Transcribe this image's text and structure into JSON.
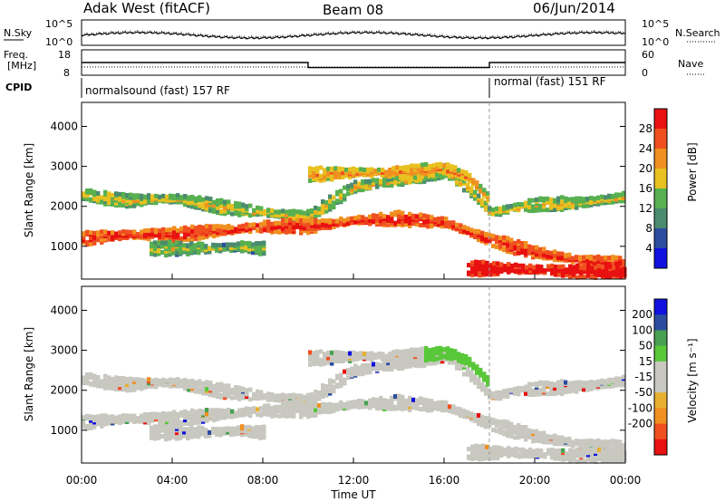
{
  "header": {
    "station": "Adak West (fitACF)",
    "beam": "Beam 08",
    "date": "06/Jun/2014"
  },
  "noise_panel": {
    "left_label": "N.Sky",
    "right_label": "N.Search",
    "left_ticks": [
      "10^5",
      "10^0"
    ],
    "right_ticks": [
      "10^5",
      "10^0"
    ]
  },
  "freq_panel": {
    "left_label_1": "Freq.",
    "left_label_2": "[MHz]",
    "right_label": "Nave",
    "left_ticks": [
      "18",
      "8"
    ],
    "right_ticks": [
      "60",
      "0"
    ],
    "freq_steps": [
      {
        "from": 0,
        "to": 10,
        "value": 13
      },
      {
        "from": 10,
        "to": 18,
        "value": 11
      },
      {
        "from": 18,
        "to": 24,
        "value": 13
      }
    ]
  },
  "cpid_panel": {
    "label": "CPID",
    "modes": [
      {
        "start": 0,
        "text": "normalsound (fast) 157 RF"
      },
      {
        "start": 18,
        "text": "normal (fast) 151 RF"
      }
    ]
  },
  "axes": {
    "ylabel": "Slant Range [km]",
    "yticks": [
      "1000",
      "2000",
      "3000",
      "4000"
    ],
    "xticks": [
      "00:00",
      "04:00",
      "08:00",
      "12:00",
      "16:00",
      "20:00",
      "00:00"
    ],
    "xlabel": "Time UT"
  },
  "colors": {
    "power": [
      "#1010e0",
      "#2c4ca0",
      "#4b8c6e",
      "#58b050",
      "#e8c020",
      "#f09020",
      "#f05020",
      "#e81010"
    ],
    "velocity": [
      "#e81010",
      "#f05020",
      "#f09020",
      "#e8b030",
      "#c8c8c0",
      "#c8c8c0",
      "#58c838",
      "#48a050",
      "#2c4ca0",
      "#1010e0"
    ],
    "ground_scatter": "#c8c8c0"
  },
  "power_colorbar": {
    "label": "Power [dB]",
    "ticks": [
      "4",
      "8",
      "12",
      "16",
      "20",
      "24",
      "28"
    ]
  },
  "velocity_colorbar": {
    "label": "Velocity [m s⁻¹]",
    "ticks": [
      "200",
      "100",
      "50",
      "15",
      "-15",
      "-50",
      "-100",
      "-200"
    ]
  },
  "chart_data": {
    "type": "heatmap",
    "x_range_hours": [
      0,
      24
    ],
    "y_range_km": [
      180,
      4600
    ],
    "power_range_db": [
      0,
      30
    ],
    "velocity_range": [
      -250,
      250
    ],
    "scatter_bands": [
      {
        "name": "upper-band",
        "start_h": 0,
        "end_h": 24,
        "x_h": [
          0,
          2,
          4,
          6,
          8,
          10,
          12,
          14,
          16,
          17,
          18,
          20,
          22,
          24
        ],
        "range_km": [
          2350,
          2200,
          2250,
          2050,
          1900,
          1800,
          2550,
          2700,
          2950,
          2500,
          1900,
          2100,
          2150,
          2300
        ],
        "power_db": 12
      },
      {
        "name": "upper-band-day",
        "start_h": 10,
        "end_h": 18,
        "x_h": [
          10,
          12,
          14,
          16,
          17,
          18
        ],
        "range_km": [
          2850,
          2900,
          2900,
          3000,
          2800,
          2200
        ],
        "power_db": 16
      },
      {
        "name": "mid-band",
        "start_h": 0,
        "end_h": 24,
        "x_h": [
          0,
          2,
          4,
          6,
          8,
          10,
          12,
          14,
          16,
          18,
          20,
          22,
          24
        ],
        "range_km": [
          1250,
          1350,
          1350,
          1450,
          1550,
          1550,
          1700,
          1750,
          1650,
          1200,
          900,
          700,
          600
        ],
        "power_db": 22
      },
      {
        "name": "low-band-night",
        "start_h": 3,
        "end_h": 8,
        "x_h": [
          3,
          5,
          7,
          8
        ],
        "range_km": [
          1000,
          1000,
          1050,
          1000
        ],
        "power_db": 10
      },
      {
        "name": "near-range-evening",
        "start_h": 17,
        "end_h": 24,
        "x_h": [
          17,
          19,
          21,
          24
        ],
        "range_km": [
          500,
          500,
          450,
          400
        ],
        "power_db": 26
      }
    ],
    "mode_change_hours": [
      10,
      18
    ]
  }
}
